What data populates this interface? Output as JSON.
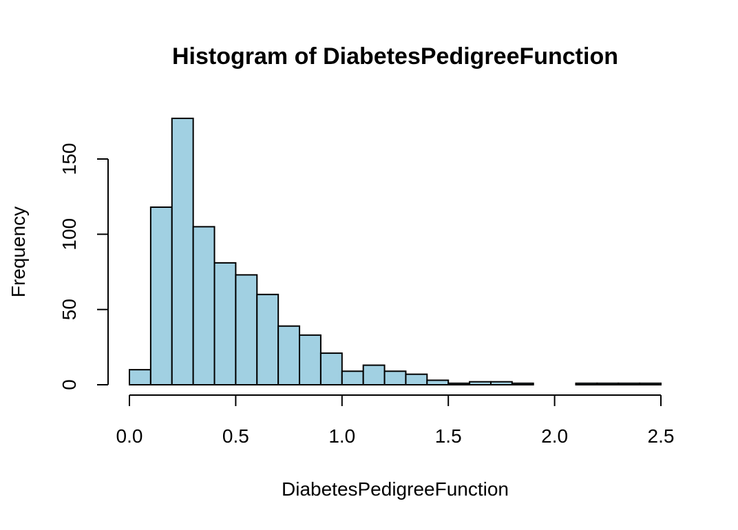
{
  "chart_data": {
    "type": "bar",
    "title": "Histogram of DiabetesPedigreeFunction",
    "xlabel": "DiabetesPedigreeFunction",
    "ylabel": "Frequency",
    "bin_width": 0.1,
    "bin_starts": [
      0.0,
      0.1,
      0.2,
      0.3,
      0.4,
      0.5,
      0.6,
      0.7,
      0.8,
      0.9,
      1.0,
      1.1,
      1.2,
      1.3,
      1.4,
      1.5,
      1.6,
      1.7,
      1.8,
      1.9,
      2.0,
      2.1,
      2.2,
      2.3,
      2.4
    ],
    "values": [
      10,
      118,
      177,
      105,
      81,
      73,
      60,
      39,
      33,
      21,
      9,
      13,
      9,
      7,
      3,
      1,
      2,
      2,
      1,
      0,
      0,
      1,
      1,
      1,
      1
    ],
    "xlim": [
      0,
      2.5
    ],
    "ylim": [
      0,
      177
    ],
    "x_ticks": [
      "0.0",
      "0.5",
      "1.0",
      "1.5",
      "2.0",
      "2.5"
    ],
    "y_ticks": [
      "0",
      "50",
      "100",
      "150"
    ],
    "bar_color": "#A1D0E2",
    "bar_edge_color": "#000000",
    "grid": false,
    "legend": "none"
  }
}
